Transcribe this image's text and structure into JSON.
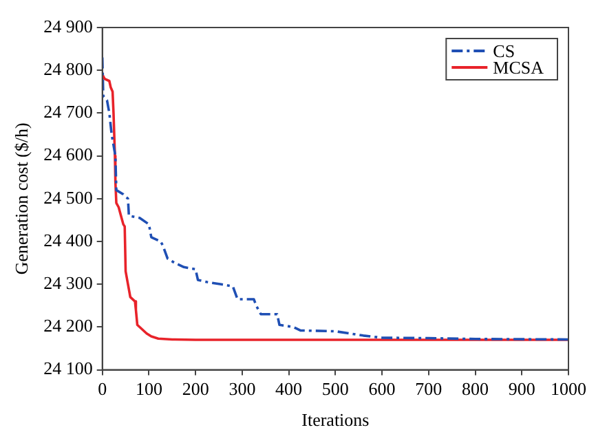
{
  "chart_data": {
    "type": "line",
    "xlabel": "Iterations",
    "ylabel": "Generation cost ($/h)",
    "xlim": [
      0,
      1000
    ],
    "xticks": [
      0,
      100,
      200,
      300,
      400,
      500,
      600,
      700,
      800,
      900,
      1000
    ],
    "ylim": [
      24100,
      24900
    ],
    "yticks": [
      {
        "value": 24100,
        "label": "24 100"
      },
      {
        "value": 24200,
        "label": "24 200"
      },
      {
        "value": 24300,
        "label": "24 300"
      },
      {
        "value": 24400,
        "label": "24 400"
      },
      {
        "value": 24500,
        "label": "24 500"
      },
      {
        "value": 24600,
        "label": "24 600"
      },
      {
        "value": 24700,
        "label": "24 700"
      },
      {
        "value": 24800,
        "label": "24 800"
      },
      {
        "value": 24900,
        "label": "24 900"
      }
    ],
    "grid": false,
    "legend": "top right",
    "marker": "none",
    "series": [
      {
        "name": "CS",
        "color": "#1f4fb4",
        "line_style": "dashed",
        "x": [
          0,
          2,
          10,
          15,
          20,
          28,
          30,
          45,
          55,
          57,
          80,
          100,
          105,
          125,
          130,
          140,
          155,
          175,
          200,
          205,
          225,
          255,
          280,
          290,
          325,
          330,
          340,
          375,
          380,
          410,
          425,
          500,
          560,
          600,
          700,
          800,
          1000
        ],
        "values": [
          24830,
          24740,
          24730,
          24700,
          24650,
          24600,
          24520,
          24510,
          24500,
          24460,
          24455,
          24440,
          24410,
          24400,
          24390,
          24360,
          24350,
          24340,
          24335,
          24310,
          24305,
          24300,
          24295,
          24265,
          24265,
          24250,
          24230,
          24230,
          24205,
          24200,
          24192,
          24190,
          24180,
          24175,
          24174,
          24172,
          24171
        ]
      },
      {
        "name": "MCSA",
        "color": "#e8232a",
        "line_style": "solid",
        "x": [
          0,
          5,
          15,
          18,
          22,
          24,
          27,
          28,
          30,
          35,
          40,
          45,
          48,
          50,
          55,
          60,
          70,
          72,
          75,
          85,
          95,
          105,
          120,
          150,
          200,
          1000
        ],
        "values": [
          24790,
          24780,
          24775,
          24760,
          24750,
          24700,
          24600,
          24540,
          24490,
          24480,
          24460,
          24440,
          24435,
          24330,
          24300,
          24270,
          24260,
          24240,
          24205,
          24195,
          24185,
          24178,
          24173,
          24171,
          24170,
          24170
        ]
      }
    ]
  }
}
